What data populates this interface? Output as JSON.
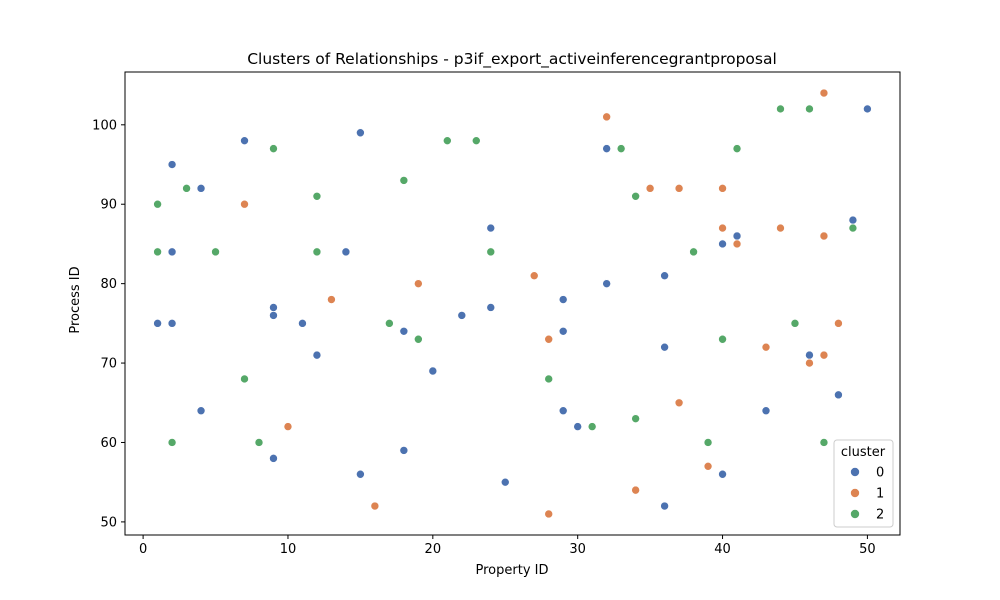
{
  "chart_data": {
    "type": "scatter",
    "title": "Clusters of Relationships - p3if_export_activeinferencegrantproposal",
    "xlabel": "Property ID",
    "ylabel": "Process ID",
    "xlim": [
      -1.25,
      52.25
    ],
    "ylim": [
      48.35,
      106.65
    ],
    "x_ticks": [
      0,
      10,
      20,
      30,
      40,
      50
    ],
    "y_ticks": [
      50,
      60,
      70,
      80,
      90,
      100
    ],
    "grid": false,
    "legend": {
      "title": "cluster",
      "placement": "bottom-right"
    },
    "series": [
      {
        "name": "0",
        "color": "#4c72b0",
        "points": [
          [
            1,
            75
          ],
          [
            2,
            75
          ],
          [
            2,
            84
          ],
          [
            2,
            95
          ],
          [
            4,
            92
          ],
          [
            4,
            64
          ],
          [
            7,
            98
          ],
          [
            9,
            77
          ],
          [
            9,
            76
          ],
          [
            9,
            58
          ],
          [
            11,
            75
          ],
          [
            12,
            71
          ],
          [
            14,
            84
          ],
          [
            15,
            99
          ],
          [
            15,
            56
          ],
          [
            18,
            74
          ],
          [
            18,
            59
          ],
          [
            20,
            69
          ],
          [
            22,
            76
          ],
          [
            24,
            87
          ],
          [
            24,
            77
          ],
          [
            25,
            55
          ],
          [
            29,
            78
          ],
          [
            29,
            74
          ],
          [
            29,
            64
          ],
          [
            30,
            62
          ],
          [
            32,
            97
          ],
          [
            32,
            80
          ],
          [
            36,
            81
          ],
          [
            36,
            72
          ],
          [
            36,
            52
          ],
          [
            40,
            85
          ],
          [
            40,
            56
          ],
          [
            41,
            86
          ],
          [
            43,
            64
          ],
          [
            46,
            71
          ],
          [
            48,
            66
          ],
          [
            49,
            88
          ],
          [
            50,
            102
          ]
        ]
      },
      {
        "name": "1",
        "color": "#dd8452",
        "points": [
          [
            7,
            90
          ],
          [
            10,
            62
          ],
          [
            13,
            78
          ],
          [
            16,
            52
          ],
          [
            19,
            80
          ],
          [
            27,
            81
          ],
          [
            28,
            73
          ],
          [
            28,
            51
          ],
          [
            32,
            101
          ],
          [
            34,
            54
          ],
          [
            35,
            92
          ],
          [
            37,
            92
          ],
          [
            37,
            65
          ],
          [
            39,
            57
          ],
          [
            40,
            92
          ],
          [
            40,
            87
          ],
          [
            41,
            85
          ],
          [
            43,
            72
          ],
          [
            44,
            87
          ],
          [
            46,
            70
          ],
          [
            47,
            104
          ],
          [
            47,
            86
          ],
          [
            47,
            71
          ],
          [
            48,
            75
          ]
        ]
      },
      {
        "name": "2",
        "color": "#55a868",
        "points": [
          [
            1,
            90
          ],
          [
            1,
            84
          ],
          [
            2,
            60
          ],
          [
            3,
            92
          ],
          [
            5,
            84
          ],
          [
            7,
            68
          ],
          [
            8,
            60
          ],
          [
            9,
            97
          ],
          [
            12,
            91
          ],
          [
            12,
            84
          ],
          [
            17,
            75
          ],
          [
            18,
            93
          ],
          [
            19,
            73
          ],
          [
            21,
            98
          ],
          [
            23,
            98
          ],
          [
            24,
            84
          ],
          [
            28,
            68
          ],
          [
            31,
            62
          ],
          [
            33,
            97
          ],
          [
            34,
            91
          ],
          [
            34,
            63
          ],
          [
            38,
            84
          ],
          [
            39,
            60
          ],
          [
            40,
            73
          ],
          [
            41,
            97
          ],
          [
            44,
            102
          ],
          [
            45,
            75
          ],
          [
            46,
            102
          ],
          [
            47,
            60
          ],
          [
            49,
            87
          ]
        ]
      }
    ]
  }
}
